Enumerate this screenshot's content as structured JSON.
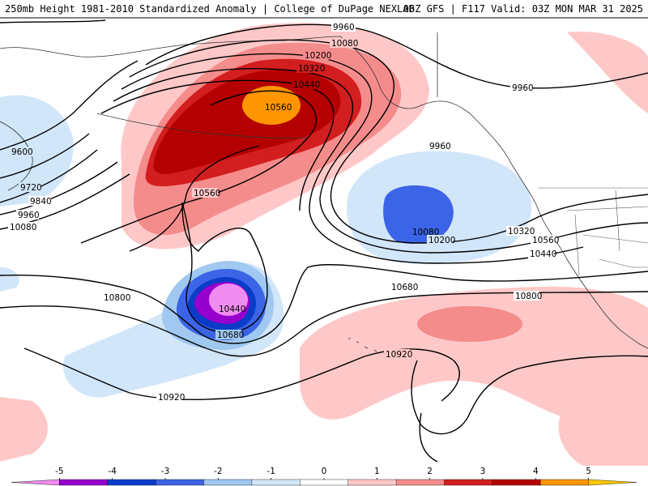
{
  "header": {
    "left_title": "250mb Height 1981-2010 Standardized Anomaly | College of DuPage NEXLAB",
    "right_title": "06Z GFS | F117 Valid: 03Z MON MAR 31 2025"
  },
  "contour_labels": [
    "9960",
    "10080",
    "10200",
    "10320",
    "10440",
    "10560",
    "9960",
    "9600",
    "9720",
    "9840",
    "9960",
    "10080",
    "10560",
    "9960",
    "10080",
    "10200",
    "10320",
    "10440",
    "10560",
    "10440",
    "10680",
    "10680",
    "10800",
    "10800",
    "10920",
    "10920"
  ],
  "colorbar": {
    "ticks": [
      "-5",
      "-4",
      "-3",
      "-2",
      "-1",
      "0",
      "1",
      "2",
      "3",
      "4",
      "5"
    ],
    "colors": [
      "#f08cf0",
      "#9600cd",
      "#0a3cc8",
      "#3c64e6",
      "#a0c8f0",
      "#d2e6fa",
      "#ffffff",
      "#ffc8c8",
      "#f58c8c",
      "#d21e1e",
      "#b40000",
      "#ff9600",
      "#ffc800"
    ]
  }
}
